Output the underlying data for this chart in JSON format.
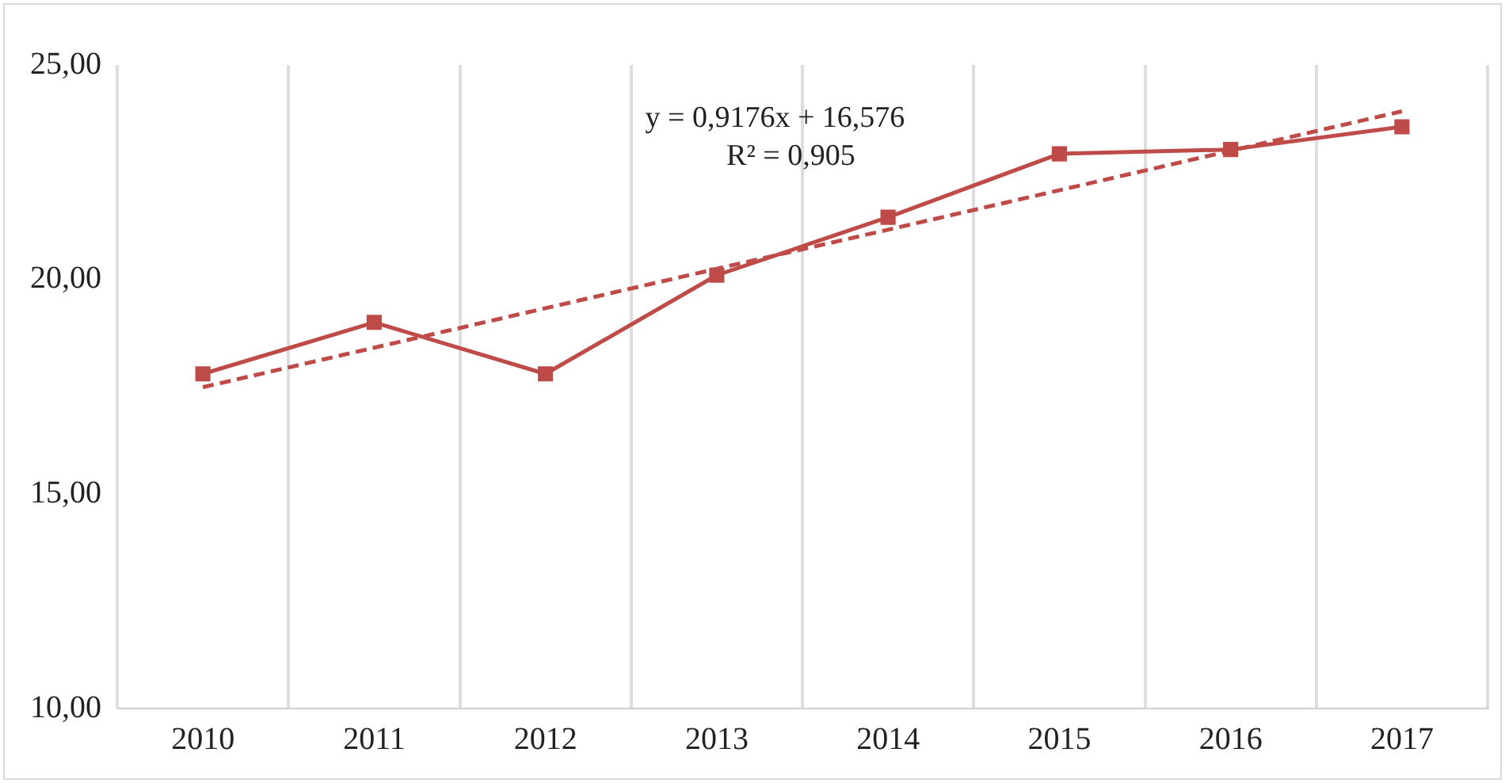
{
  "chart_data": {
    "type": "line",
    "categories": [
      "2010",
      "2011",
      "2012",
      "2013",
      "2014",
      "2015",
      "2016",
      "2017"
    ],
    "series": [
      {
        "color": "#be4b48",
        "marker": "square",
        "line_style": "solid",
        "values": [
          17.8,
          19.0,
          17.8,
          20.1,
          21.45,
          22.93,
          23.03,
          23.56
        ]
      },
      {
        "color": "#be4b48",
        "marker": "none",
        "line_style": "dashed",
        "values": [
          17.49,
          18.41,
          19.33,
          20.25,
          21.16,
          22.08,
          23.0,
          23.92
        ]
      }
    ],
    "ylim": [
      10,
      25
    ],
    "yticks": [
      {
        "value": 10,
        "label": "10,00"
      },
      {
        "value": 15,
        "label": "15,00"
      },
      {
        "value": 20,
        "label": "20,00"
      },
      {
        "value": 25,
        "label": "25,00"
      }
    ],
    "grid": "x",
    "legend": false,
    "annotations": [
      "y = 0,9176x + 16,576",
      "R² = 0,905"
    ]
  }
}
